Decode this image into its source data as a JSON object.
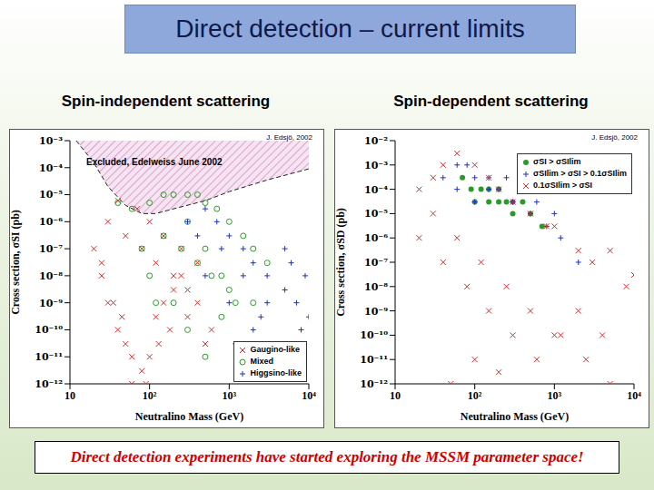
{
  "slide": {
    "title": "Direct detection – current limits",
    "footer": "Direct detection experiments have started exploring the MSSM parameter space!"
  },
  "chart_data": [
    {
      "type": "scatter",
      "title": "Spin-independent scattering",
      "x_label": "Neutralino Mass (GeV)",
      "y_label": "Cross section, σSI (pb)",
      "annotation": "J. Edsjö, 2002",
      "log": true,
      "legend": "lower right",
      "xlim": [
        10,
        10000
      ],
      "ylim": [
        1e-12,
        0.001
      ],
      "xticks": [
        10,
        {
          "value": 100,
          "label": "10²"
        },
        {
          "value": 1000,
          "label": "10³"
        },
        {
          "value": 10000,
          "label": "10⁴"
        }
      ],
      "yticks": [
        {
          "value": 1e-12,
          "label": "10⁻¹²"
        },
        {
          "value": 1e-11,
          "label": "10⁻¹¹"
        },
        {
          "value": 1e-10,
          "label": "10⁻¹⁰"
        },
        {
          "value": 1e-09,
          "label": "10⁻⁹"
        },
        {
          "value": 1e-08,
          "label": "10⁻⁸"
        },
        {
          "value": 1e-07,
          "label": "10⁻⁷"
        },
        {
          "value": 1e-06,
          "label": "10⁻⁶"
        },
        {
          "value": 1e-05,
          "label": "10⁻⁵"
        },
        {
          "value": 0.0001,
          "label": "10⁻⁴"
        },
        {
          "value": 0.001,
          "label": "10⁻³"
        }
      ],
      "exclusion": {
        "name": "Excluded, Edelweiss June 2002",
        "color": "#c060a0",
        "line_style": "dashed",
        "x": [
          12,
          20,
          30,
          50,
          80,
          120,
          200,
          500,
          1000,
          3000,
          10000
        ],
        "y": [
          0.001,
          0.00015,
          2e-05,
          4e-06,
          2e-06,
          2e-06,
          3e-06,
          6e-06,
          1.3e-05,
          3.5e-05,
          9e-05
        ]
      },
      "series": [
        {
          "name": "Gaugino-like",
          "color": "#d03030",
          "marker": "x",
          "x": [
            20,
            25,
            30,
            40,
            50,
            60,
            80,
            100,
            120,
            150,
            200,
            250,
            300,
            400,
            500,
            600,
            30,
            50,
            80,
            120,
            200,
            300,
            40,
            70,
            100,
            150,
            250,
            400,
            60,
            90,
            130,
            180,
            25,
            35,
            45
          ],
          "y": [
            1e-07,
            3e-08,
            1e-09,
            1e-10,
            3e-11,
            1e-12,
            3e-12,
            1e-11,
            3e-10,
            1e-09,
            3e-09,
            1e-08,
            3e-10,
            1e-09,
            3e-11,
            1e-10,
            1e-06,
            3e-07,
            1e-07,
            3e-08,
            1e-08,
            3e-09,
            6e-06,
            3e-06,
            1e-06,
            3e-07,
            1e-07,
            3e-08,
            1e-11,
            1e-12,
            3e-11,
            1e-10,
            1e-08,
            1e-09,
            3e-10
          ]
        },
        {
          "name": "Mixed",
          "color": "#2a9a2a",
          "marker": "circle",
          "x": [
            40,
            60,
            100,
            150,
            200,
            300,
            400,
            500,
            700,
            1000,
            1500,
            2000,
            3000,
            100,
            200,
            300,
            500,
            800,
            1200,
            150,
            250,
            400,
            600,
            1000,
            2000,
            80,
            120,
            300,
            500,
            800
          ],
          "y": [
            5e-06,
            3e-06,
            5e-06,
            1e-05,
            1e-05,
            1e-05,
            1e-05,
            5e-06,
            3e-06,
            1e-06,
            3e-07,
            1e-07,
            3e-08,
            1e-08,
            1e-09,
            1e-10,
            1e-11,
            3e-10,
            1e-09,
            3e-07,
            1e-07,
            3e-08,
            1e-08,
            3e-09,
            1e-09,
            1e-07,
            1e-09,
            1e-06,
            1e-07,
            1e-08
          ]
        },
        {
          "name": "Higgsino-like",
          "color": "#2030c0",
          "marker": "plus",
          "x": [
            300,
            500,
            700,
            1000,
            1500,
            2000,
            3000,
            5000,
            7000,
            10000,
            500,
            1000,
            2000,
            4000,
            8000,
            800,
            1500,
            3000,
            6000,
            400,
            1200,
            2500,
            5000,
            9000
          ],
          "y": [
            1e-06,
            3e-06,
            1e-06,
            3e-07,
            1e-07,
            3e-08,
            1e-08,
            3e-09,
            1e-09,
            3e-10,
            1e-08,
            1e-09,
            1e-10,
            1e-11,
            1e-10,
            1e-07,
            1e-08,
            1e-09,
            3e-08,
            3e-07,
            3e-11,
            3e-10,
            1e-07,
            1e-08
          ]
        }
      ]
    },
    {
      "type": "scatter",
      "title": "Spin-dependent scattering",
      "x_label": "Neutralino Mass (GeV)",
      "y_label": "Cross section, σSD (pb)",
      "annotation": "J. Edsjö, 2002",
      "log": true,
      "legend": "upper right",
      "xlim": [
        10,
        10000
      ],
      "ylim": [
        1e-12,
        0.01
      ],
      "xticks": [
        10,
        {
          "value": 100,
          "label": "10²"
        },
        {
          "value": 1000,
          "label": "10³"
        },
        {
          "value": 10000,
          "label": "10⁴"
        }
      ],
      "yticks": [
        {
          "value": 1e-12,
          "label": "10⁻¹²"
        },
        {
          "value": 1e-11,
          "label": "10⁻¹¹"
        },
        {
          "value": 1e-10,
          "label": "10⁻¹⁰"
        },
        {
          "value": 1e-09,
          "label": "10⁻⁹"
        },
        {
          "value": 1e-08,
          "label": "10⁻⁸"
        },
        {
          "value": 1e-07,
          "label": "10⁻⁷"
        },
        {
          "value": 1e-06,
          "label": "10⁻⁶"
        },
        {
          "value": 1e-05,
          "label": "10⁻⁵"
        },
        {
          "value": 0.0001,
          "label": "10⁻⁴"
        },
        {
          "value": 0.001,
          "label": "10⁻³"
        },
        {
          "value": 0.01,
          "label": "10⁻²"
        }
      ],
      "series": [
        {
          "name": "σSI > σSIlim",
          "color": "#2a9a2a",
          "marker": "dot",
          "x": [
            70,
            90,
            120,
            150,
            200,
            250,
            300,
            400,
            500,
            700,
            100,
            150,
            200,
            300
          ],
          "y": [
            0.0003,
            0.0001,
            0.0001,
            3e-05,
            0.0001,
            3e-05,
            1e-05,
            3e-05,
            1e-05,
            3e-06,
            3e-05,
            0.0001,
            3e-05,
            3e-05
          ]
        },
        {
          "name": "σSIlim > σSI > 0.1σSIlim",
          "color": "#2030c0",
          "marker": "plus",
          "x": [
            40,
            60,
            80,
            100,
            150,
            200,
            300,
            500,
            800,
            1200,
            2000,
            60,
            100,
            150,
            250,
            400,
            600,
            1000
          ],
          "y": [
            0.0003,
            0.001,
            0.001,
            0.0003,
            0.0001,
            0.0001,
            3e-05,
            1e-05,
            3e-06,
            1e-06,
            1e-07,
            0.0001,
            3e-05,
            0.0003,
            0.0003,
            0.0001,
            3e-05,
            1e-05
          ]
        },
        {
          "name": "0.1σSIlim > σSI",
          "color": "#d03030",
          "marker": "x",
          "x": [
            20,
            30,
            40,
            60,
            100,
            150,
            200,
            300,
            500,
            800,
            1000,
            2000,
            3000,
            5000,
            10000,
            20,
            40,
            80,
            150,
            300,
            600,
            1200,
            2500,
            5000,
            30,
            60,
            120,
            250,
            500,
            1000,
            2000,
            4000,
            8000,
            50,
            100,
            200
          ],
          "y": [
            0.0001,
            0.0003,
            0.001,
            0.003,
            0.001,
            0.0003,
            0.0001,
            3e-05,
            1e-05,
            3e-06,
            3e-06,
            3e-07,
            1e-07,
            3e-07,
            3e-08,
            1e-06,
            1e-07,
            1e-08,
            1e-09,
            1e-10,
            1e-11,
            1e-10,
            1e-11,
            1e-12,
            1e-05,
            1e-06,
            1e-07,
            1e-08,
            1e-09,
            1e-10,
            1e-09,
            1e-10,
            1e-08,
            1e-12,
            1e-11,
            3e-12
          ]
        }
      ]
    }
  ]
}
